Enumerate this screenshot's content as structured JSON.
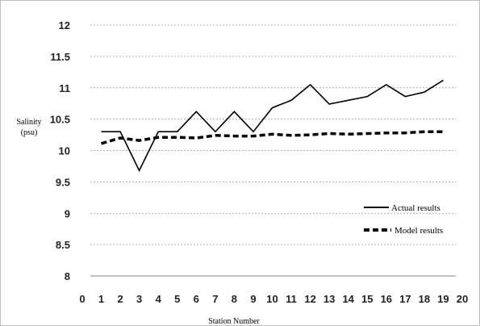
{
  "chart_data": {
    "type": "line",
    "xlabel": "Station Number",
    "ylabel": [
      "Salinity",
      "(psu)"
    ],
    "xlim": [
      0,
      20
    ],
    "ylim": [
      8,
      12
    ],
    "x_ticks": [
      0,
      1,
      2,
      3,
      4,
      5,
      6,
      7,
      8,
      9,
      10,
      11,
      12,
      13,
      14,
      15,
      16,
      17,
      18,
      19,
      20
    ],
    "y_ticks": [
      "8",
      "8.5",
      "9",
      "9.5",
      "10",
      "10.5",
      "11",
      "11.5",
      "12"
    ],
    "grid": "horizontal dashed",
    "legend_position": "right",
    "x": [
      1,
      2,
      3,
      4,
      5,
      6,
      7,
      8,
      9,
      10,
      11,
      12,
      13,
      14,
      15,
      16,
      17,
      18,
      19
    ],
    "series": [
      {
        "name": "Actual results",
        "style": "solid",
        "color": "#000000",
        "values": [
          10.3,
          10.3,
          9.68,
          10.3,
          10.3,
          10.62,
          10.3,
          10.62,
          10.3,
          10.68,
          10.8,
          11.05,
          10.74,
          10.8,
          10.86,
          11.05,
          10.86,
          10.93,
          11.12
        ]
      },
      {
        "name": "Model results",
        "style": "dashed",
        "color": "#000000",
        "values": [
          10.11,
          10.2,
          10.16,
          10.21,
          10.21,
          10.2,
          10.24,
          10.23,
          10.23,
          10.26,
          10.24,
          10.25,
          10.27,
          10.26,
          10.27,
          10.28,
          10.28,
          10.3,
          10.3
        ]
      }
    ]
  }
}
